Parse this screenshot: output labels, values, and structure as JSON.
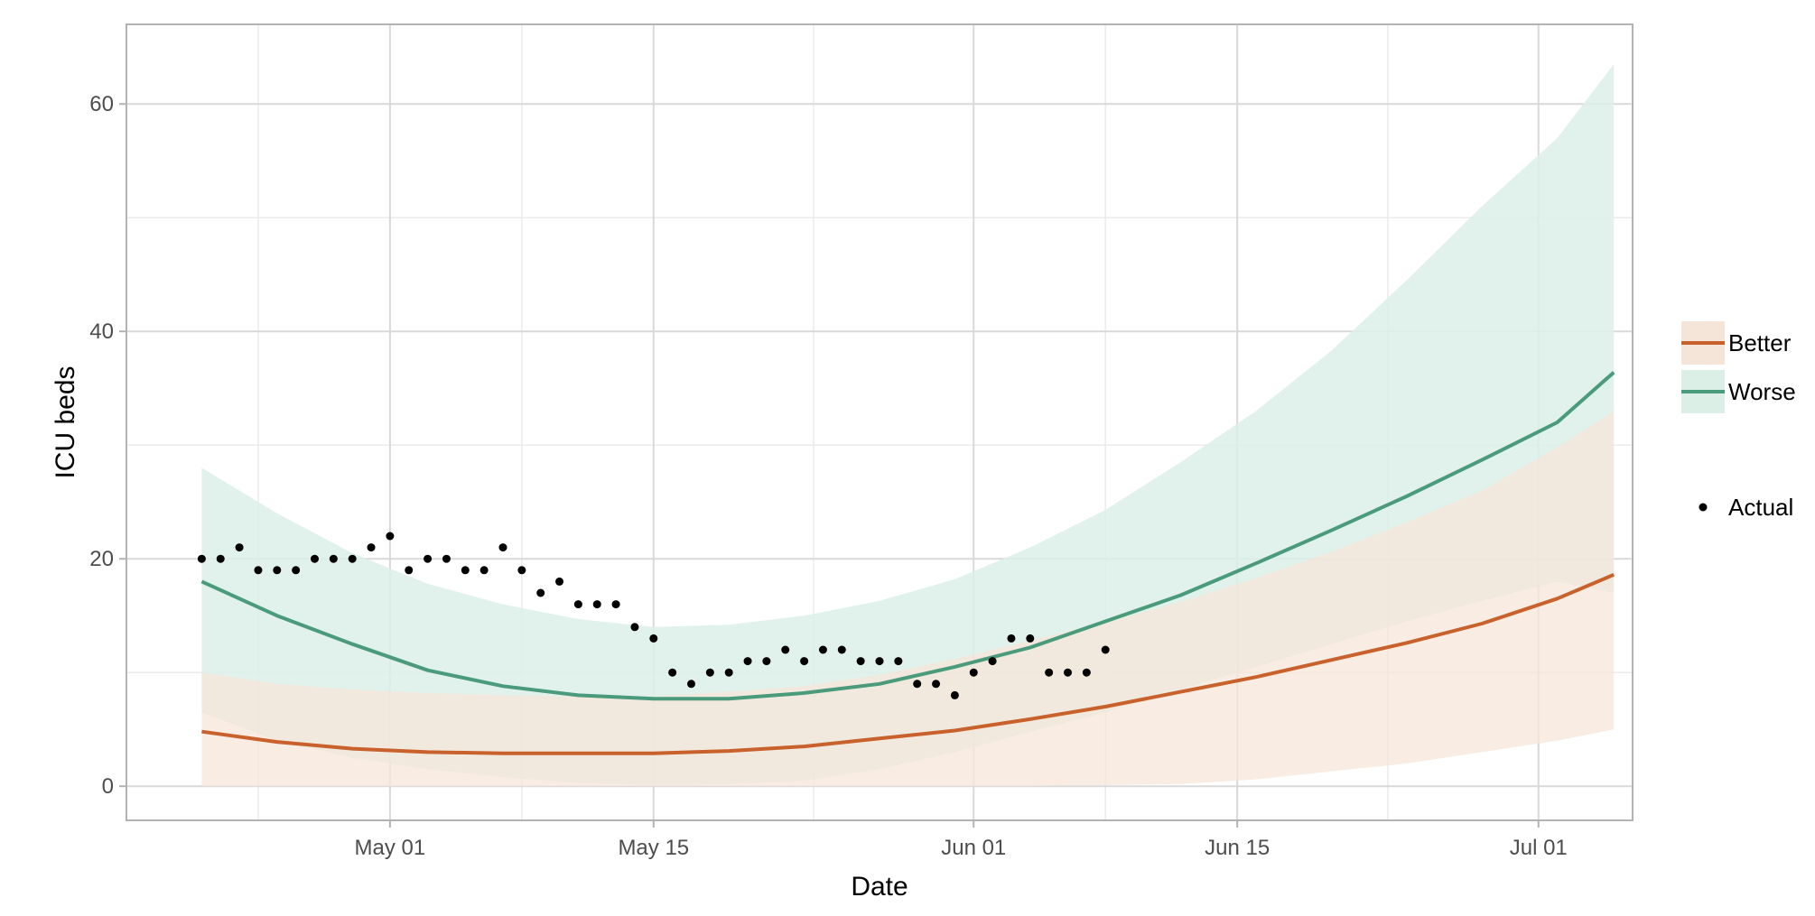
{
  "chart_data": {
    "type": "line",
    "title": "",
    "xlabel": "Date",
    "ylabel": "ICU beds",
    "x_axis": {
      "type": "date",
      "range": [
        "2020-04-17",
        "2020-07-06"
      ],
      "ticks": [
        {
          "date": "2020-05-01",
          "label": "May 01"
        },
        {
          "date": "2020-05-15",
          "label": "May 15"
        },
        {
          "date": "2020-06-01",
          "label": "Jun 01"
        },
        {
          "date": "2020-06-15",
          "label": "Jun 15"
        },
        {
          "date": "2020-07-01",
          "label": "Jul 01"
        }
      ]
    },
    "y_axis": {
      "range": [
        -3,
        67
      ],
      "ticks": [
        0,
        20,
        40,
        60
      ]
    },
    "grid": true,
    "legend_position": "right",
    "x": [
      "2020-04-21",
      "2020-04-25",
      "2020-04-29",
      "2020-05-03",
      "2020-05-07",
      "2020-05-11",
      "2020-05-15",
      "2020-05-19",
      "2020-05-23",
      "2020-05-27",
      "2020-05-31",
      "2020-06-04",
      "2020-06-08",
      "2020-06-12",
      "2020-06-16",
      "2020-06-20",
      "2020-06-24",
      "2020-06-28",
      "2020-07-02",
      "2020-07-05"
    ],
    "series": [
      {
        "name": "Better",
        "color": "#c8612b",
        "band_color": "#f5e5d9",
        "values": [
          4.8,
          3.9,
          3.3,
          3.0,
          2.9,
          2.9,
          2.9,
          3.1,
          3.5,
          4.2,
          4.9,
          5.9,
          7.0,
          8.3,
          9.6,
          11.1,
          12.6,
          14.3,
          16.5,
          18.6
        ],
        "lower": [
          0,
          0,
          0,
          0,
          0,
          0,
          0,
          0,
          0,
          0,
          0,
          0,
          0.1,
          0.2,
          0.6,
          1.3,
          2.0,
          3.0,
          4.0,
          5.0
        ],
        "upper": [
          10.0,
          9.0,
          8.5,
          8.2,
          8.0,
          7.9,
          7.9,
          8.3,
          8.8,
          9.8,
          11.2,
          12.8,
          14.4,
          16.2,
          18.3,
          20.6,
          23.2,
          26.0,
          29.8,
          33.0
        ]
      },
      {
        "name": "Worse",
        "color": "#4a9a7c",
        "band_color": "#dcefe7",
        "values": [
          18.0,
          15.0,
          12.5,
          10.2,
          8.8,
          8.0,
          7.7,
          7.7,
          8.2,
          9.0,
          10.5,
          12.2,
          14.5,
          16.8,
          19.6,
          22.5,
          25.5,
          28.7,
          32.0,
          36.4
        ],
        "lower": [
          6.5,
          4.0,
          2.5,
          1.5,
          0.8,
          0.3,
          0.1,
          0.2,
          0.5,
          1.5,
          3.0,
          4.8,
          6.5,
          8.5,
          10.5,
          12.5,
          14.5,
          16.3,
          18.0,
          17.0
        ],
        "upper": [
          28.0,
          24.0,
          20.5,
          17.8,
          16.0,
          14.7,
          14.0,
          14.2,
          15.0,
          16.3,
          18.2,
          21.0,
          24.3,
          28.5,
          33.0,
          38.3,
          44.5,
          51.0,
          57.0,
          63.5
        ]
      },
      {
        "name": "Actual",
        "type": "scatter",
        "color": "#000000",
        "x": [
          "2020-04-21",
          "2020-04-22",
          "2020-04-23",
          "2020-04-24",
          "2020-04-25",
          "2020-04-26",
          "2020-04-27",
          "2020-04-28",
          "2020-04-29",
          "2020-04-30",
          "2020-05-01",
          "2020-05-02",
          "2020-05-03",
          "2020-05-04",
          "2020-05-05",
          "2020-05-06",
          "2020-05-07",
          "2020-05-08",
          "2020-05-09",
          "2020-05-10",
          "2020-05-11",
          "2020-05-12",
          "2020-05-13",
          "2020-05-14",
          "2020-05-15",
          "2020-05-16",
          "2020-05-17",
          "2020-05-18",
          "2020-05-19",
          "2020-05-20",
          "2020-05-21",
          "2020-05-22",
          "2020-05-23",
          "2020-05-24",
          "2020-05-25",
          "2020-05-26",
          "2020-05-27",
          "2020-05-28",
          "2020-05-29",
          "2020-05-30",
          "2020-05-31",
          "2020-06-01",
          "2020-06-02",
          "2020-06-03",
          "2020-06-04",
          "2020-06-05",
          "2020-06-06",
          "2020-06-07",
          "2020-06-08"
        ],
        "values": [
          20,
          20,
          21,
          19,
          19,
          19,
          20,
          20,
          20,
          21,
          22,
          19,
          20,
          20,
          19,
          19,
          21,
          19,
          17,
          18,
          16,
          16,
          16,
          14,
          13,
          10,
          9,
          10,
          10,
          11,
          11,
          12,
          11,
          12,
          12,
          11,
          11,
          11,
          9,
          9,
          8,
          10,
          11,
          13,
          13,
          10,
          10,
          10,
          12
        ]
      }
    ],
    "legend": [
      {
        "label": "Better",
        "kind": "line-band",
        "series": 0
      },
      {
        "label": "Worse",
        "kind": "line-band",
        "series": 1
      },
      {
        "label": "Actual",
        "kind": "point",
        "series": 2
      }
    ]
  }
}
